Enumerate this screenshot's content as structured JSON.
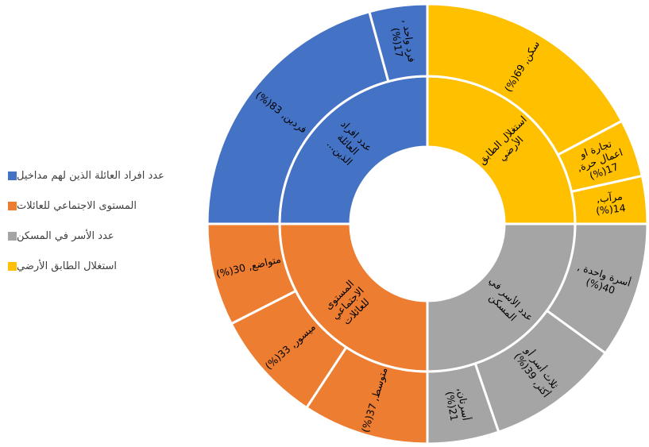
{
  "chart_data": {
    "type": "sunburst",
    "legend_position": "left",
    "colors": {
      "blue": "#4472C4",
      "orange": "#ED7D31",
      "gray": "#A5A5A5",
      "yellow": "#FFC000",
      "border": "#ffffff"
    },
    "categories": [
      {
        "name": "استغلال الطابق الأرضي",
        "ring_label": "استغلال الطابق الأرضي",
        "color": "#FFC000",
        "children": [
          {
            "name": "سكن",
            "value": 69,
            "label": "سكن, 69(%)"
          },
          {
            "name": "تجارة او اعمال حرة",
            "value": 17,
            "label": "تجارة او اعمال حرة, 17(%)"
          },
          {
            "name": "مرآب",
            "value": 14,
            "label": "مرآب, 14(%)"
          }
        ]
      },
      {
        "name": "عدد الأسر في المسكن",
        "ring_label": "عدد الأسر في المسكن",
        "color": "#A5A5A5",
        "children": [
          {
            "name": "أسرة واحدة",
            "value": 40,
            "label": "أسرة واحدة , 40(%)"
          },
          {
            "name": "ثلاث أسر أو أكثر",
            "value": 39,
            "label": "ثلاث أسر أو أكثر, 39(%)"
          },
          {
            "name": "أسرتان",
            "value": 21,
            "label": "أسرتان, 21(%)"
          }
        ]
      },
      {
        "name": "المستوى الاجتماعي للعائلات",
        "ring_label": "المستوى الاجتماعي للعائلات",
        "color": "#ED7D31",
        "children": [
          {
            "name": "متوسط",
            "value": 37,
            "label": "متوسط, 37(%)"
          },
          {
            "name": "ميسور",
            "value": 33,
            "label": "ميسور, 33(%)"
          },
          {
            "name": "متواضع",
            "value": 30,
            "label": "متواضع, 30(%)"
          }
        ]
      },
      {
        "name": "عدد افراد العائلة الذين لهم مداخيل",
        "ring_label": "عدد افراد العائلة الذين...",
        "color": "#4472C4",
        "children": [
          {
            "name": "فردين",
            "value": 83,
            "label": "فردين, 83(%)"
          },
          {
            "name": "فرد واحد",
            "value": 17,
            "label": "فرد واحد , 17(%)"
          }
        ]
      }
    ],
    "legend": [
      {
        "label": "عدد افراد العائلة الذين لهم مداخيل",
        "color": "#4472C4"
      },
      {
        "label": "المستوى الاجتماعي للعائلات",
        "color": "#ED7D31"
      },
      {
        "label": "عدد الأسر في المسكن",
        "color": "#A5A5A5"
      },
      {
        "label": "استغلال الطابق الأرضي",
        "color": "#FFC000"
      }
    ]
  }
}
